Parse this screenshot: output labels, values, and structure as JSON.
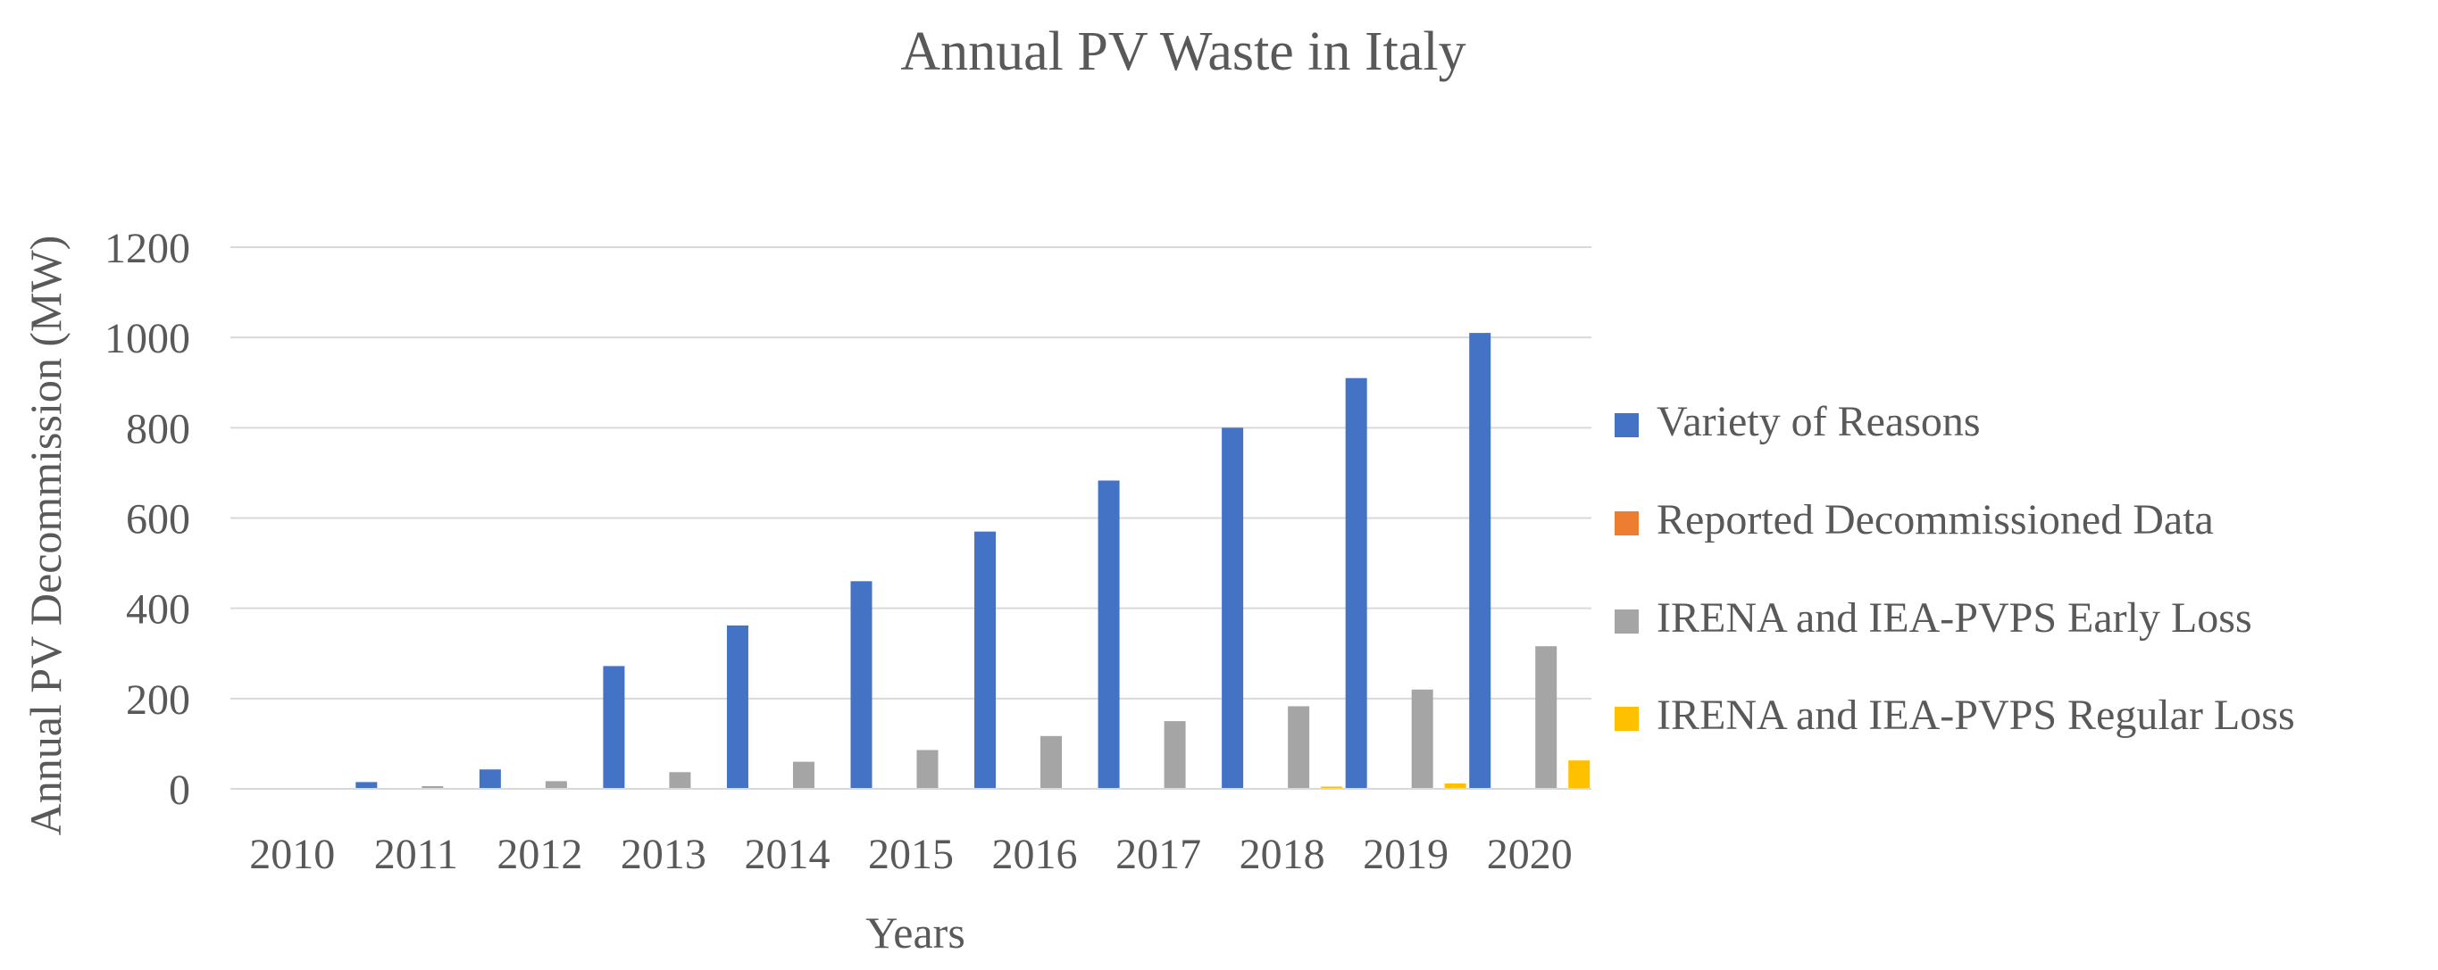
{
  "chart_data": {
    "type": "bar",
    "title": "Annual PV Waste in Italy",
    "xlabel": "Years",
    "ylabel": "Annual PV Decommission (MW)",
    "ylim": [
      0,
      1200
    ],
    "yticks": [
      0,
      200,
      400,
      600,
      800,
      1000,
      1200
    ],
    "grid": true,
    "legend_position": "right",
    "categories": [
      "2010",
      "2011",
      "2012",
      "2013",
      "2014",
      "2015",
      "2016",
      "2017",
      "2018",
      "2019",
      "2020"
    ],
    "series": [
      {
        "name": "Variety of Reasons",
        "color": "#4472C4",
        "values": [
          0,
          15,
          43,
          272,
          362,
          460,
          570,
          683,
          800,
          910,
          1010
        ]
      },
      {
        "name": "Reported Decommissioned Data",
        "color": "#ED7D31",
        "values": [
          0,
          0,
          0,
          0,
          0,
          0,
          0,
          0,
          0,
          0,
          0
        ]
      },
      {
        "name": "IRENA and IEA-PVPS Early Loss",
        "color": "#A5A5A5",
        "values": [
          0,
          6,
          17,
          37,
          60,
          86,
          117,
          150,
          183,
          220,
          316
        ]
      },
      {
        "name": "IRENA and IEA-PVPS Regular Loss",
        "color": "#FFC000",
        "values": [
          0,
          0,
          0,
          0,
          0,
          0,
          0,
          0,
          5,
          12,
          63
        ]
      }
    ]
  }
}
